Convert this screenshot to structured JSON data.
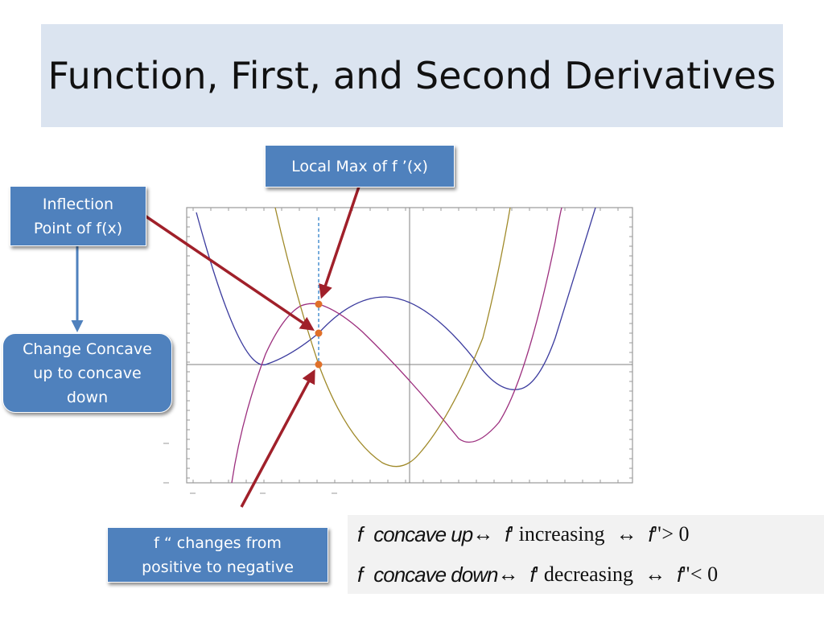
{
  "slide": {
    "title": "Function, First, and Second Derivatives"
  },
  "callouts": {
    "local_max": "Local Max of f ’(x)",
    "inflection": "Inflection\nPoint of f(x)",
    "change_concave": "Change Concave\nup to concave\ndown",
    "f_double_prime": "f “ changes from\npositive to negative"
  },
  "formulas": {
    "line1": {
      "lhs_f": "f",
      "lhs_phrase": "concave up",
      "arrow1": "↔",
      "mid_f": "f",
      "mid_mark": "'",
      "mid_word": "increasing",
      "arrow2": "↔",
      "rhs_f": "f",
      "rhs_mark": "\"",
      "rhs_rel": "> 0"
    },
    "line2": {
      "lhs_f": "f",
      "lhs_phrase": "concave down",
      "arrow1": "↔",
      "mid_f": "f",
      "mid_mark": "'",
      "mid_word": "decreasing",
      "arrow2": "↔",
      "rhs_f": "f",
      "rhs_mark": "\"",
      "rhs_rel": "< 0"
    }
  },
  "colors": {
    "f_curve": "#3b3b9e",
    "f_prime_curve": "#9c2f7e",
    "f_double_prime_curve": "#a08a2a",
    "marker": "#e0702a",
    "arrow_red": "#a0202a",
    "arrow_blue": "#4f81bd",
    "guide_line": "#4a90d0"
  }
}
